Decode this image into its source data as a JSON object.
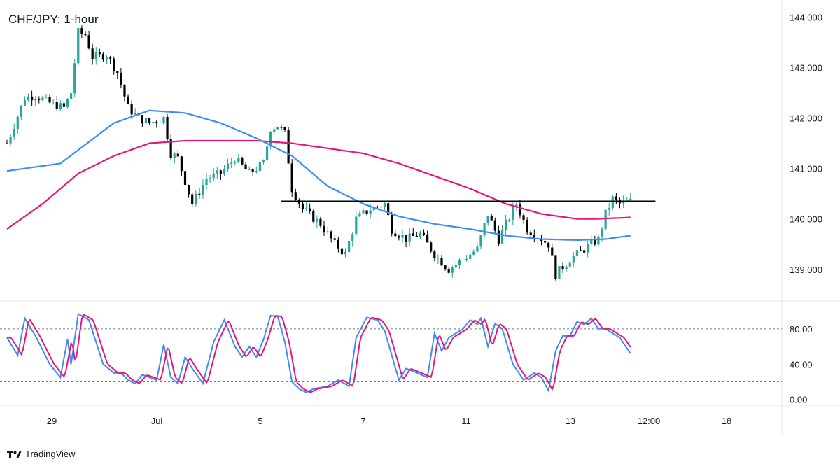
{
  "chart_data": {
    "type": "candlestick",
    "title": "CHF/JPY: 1-hour",
    "x_ticks": [
      "29",
      "Jul",
      "5",
      "7",
      "11",
      "13",
      "12:00",
      "18"
    ],
    "price_axis": {
      "ticks": [
        "144.000",
        "143.000",
        "142.000",
        "141.000",
        "140.000",
        "139.000"
      ],
      "ylim": [
        138.4,
        144.2
      ]
    },
    "price_path": [
      [
        0,
        141.5
      ],
      [
        5,
        142.4
      ],
      [
        8,
        142.45
      ],
      [
        12,
        142.3
      ],
      [
        16,
        142.2
      ],
      [
        18,
        142.5
      ],
      [
        20,
        143.7
      ],
      [
        22,
        143.65
      ],
      [
        24,
        143.2
      ],
      [
        28,
        143.25
      ],
      [
        31,
        142.9
      ],
      [
        34,
        142.2
      ],
      [
        37,
        142.0
      ],
      [
        40,
        141.9
      ],
      [
        44,
        142.0
      ],
      [
        46,
        141.3
      ],
      [
        48,
        141.2
      ],
      [
        52,
        140.3
      ],
      [
        56,
        140.8
      ],
      [
        60,
        140.9
      ],
      [
        64,
        141.2
      ],
      [
        68,
        140.9
      ],
      [
        72,
        141.1
      ],
      [
        74,
        141.8
      ],
      [
        76,
        141.85
      ],
      [
        78,
        141.7
      ],
      [
        80,
        140.6
      ],
      [
        83,
        140.2
      ],
      [
        88,
        139.9
      ],
      [
        92,
        139.5
      ],
      [
        95,
        139.3
      ],
      [
        98,
        140.0
      ],
      [
        102,
        140.2
      ],
      [
        106,
        140.3
      ],
      [
        108,
        139.8
      ],
      [
        112,
        139.6
      ],
      [
        116,
        139.7
      ],
      [
        120,
        139.3
      ],
      [
        124,
        139.0
      ],
      [
        128,
        139.2
      ],
      [
        132,
        139.4
      ],
      [
        135,
        140.1
      ],
      [
        138,
        139.6
      ],
      [
        140,
        139.9
      ],
      [
        143,
        140.3
      ],
      [
        146,
        139.8
      ],
      [
        148,
        139.7
      ],
      [
        152,
        139.5
      ],
      [
        154,
        138.9
      ],
      [
        158,
        139.2
      ],
      [
        162,
        139.4
      ],
      [
        166,
        139.6
      ],
      [
        168,
        140.1
      ],
      [
        170,
        140.4
      ],
      [
        172,
        140.3
      ],
      [
        175,
        140.35
      ]
    ],
    "candle_range": [
      0,
      175
    ],
    "ma_blue": [
      [
        0,
        140.95
      ],
      [
        15,
        141.1
      ],
      [
        30,
        141.9
      ],
      [
        40,
        142.15
      ],
      [
        50,
        142.1
      ],
      [
        60,
        141.9
      ],
      [
        70,
        141.6
      ],
      [
        80,
        141.25
      ],
      [
        90,
        140.65
      ],
      [
        100,
        140.3
      ],
      [
        110,
        140.05
      ],
      [
        120,
        139.9
      ],
      [
        130,
        139.8
      ],
      [
        140,
        139.67
      ],
      [
        150,
        139.6
      ],
      [
        160,
        139.58
      ],
      [
        168,
        139.6
      ],
      [
        175,
        139.67
      ]
    ],
    "ma_pink": [
      [
        0,
        139.8
      ],
      [
        10,
        140.3
      ],
      [
        20,
        140.9
      ],
      [
        30,
        141.25
      ],
      [
        40,
        141.5
      ],
      [
        50,
        141.55
      ],
      [
        60,
        141.55
      ],
      [
        70,
        141.55
      ],
      [
        80,
        141.5
      ],
      [
        90,
        141.4
      ],
      [
        100,
        141.3
      ],
      [
        110,
        141.1
      ],
      [
        120,
        140.85
      ],
      [
        130,
        140.6
      ],
      [
        140,
        140.3
      ],
      [
        150,
        140.1
      ],
      [
        160,
        140.0
      ],
      [
        165,
        140.0
      ],
      [
        175,
        140.03
      ]
    ],
    "horizontal_line": {
      "value": 140.35,
      "from": 77,
      "to": 182
    },
    "stoch_axis": {
      "ticks": [
        "80.00",
        "40.00",
        "0.00"
      ],
      "ylim": [
        -5,
        110
      ],
      "levels": [
        80,
        20
      ]
    },
    "stoch_path": [
      [
        0,
        70
      ],
      [
        3,
        50
      ],
      [
        5,
        92
      ],
      [
        8,
        72
      ],
      [
        12,
        40
      ],
      [
        15,
        25
      ],
      [
        17,
        68
      ],
      [
        18,
        40
      ],
      [
        20,
        97
      ],
      [
        23,
        90
      ],
      [
        27,
        40
      ],
      [
        30,
        30
      ],
      [
        32,
        30
      ],
      [
        34,
        22
      ],
      [
        36,
        18
      ],
      [
        38,
        28
      ],
      [
        42,
        22
      ],
      [
        44,
        62
      ],
      [
        46,
        25
      ],
      [
        48,
        18
      ],
      [
        50,
        48
      ],
      [
        52,
        35
      ],
      [
        55,
        18
      ],
      [
        58,
        65
      ],
      [
        61,
        90
      ],
      [
        64,
        60
      ],
      [
        66,
        48
      ],
      [
        68,
        60
      ],
      [
        70,
        48
      ],
      [
        72,
        68
      ],
      [
        74,
        95
      ],
      [
        76,
        94
      ],
      [
        78,
        65
      ],
      [
        80,
        20
      ],
      [
        82,
        12
      ],
      [
        84,
        8
      ],
      [
        86,
        12
      ],
      [
        90,
        15
      ],
      [
        93,
        22
      ],
      [
        96,
        15
      ],
      [
        98,
        70
      ],
      [
        101,
        93
      ],
      [
        104,
        90
      ],
      [
        106,
        78
      ],
      [
        108,
        50
      ],
      [
        110,
        22
      ],
      [
        112,
        35
      ],
      [
        114,
        32
      ],
      [
        118,
        25
      ],
      [
        120,
        75
      ],
      [
        122,
        55
      ],
      [
        124,
        70
      ],
      [
        128,
        80
      ],
      [
        130,
        90
      ],
      [
        132,
        85
      ],
      [
        133,
        92
      ],
      [
        135,
        60
      ],
      [
        137,
        86
      ],
      [
        139,
        80
      ],
      [
        142,
        40
      ],
      [
        145,
        22
      ],
      [
        148,
        30
      ],
      [
        150,
        25
      ],
      [
        152,
        10
      ],
      [
        154,
        55
      ],
      [
        156,
        72
      ],
      [
        158,
        72
      ],
      [
        160,
        88
      ],
      [
        162,
        85
      ],
      [
        164,
        92
      ],
      [
        166,
        80
      ],
      [
        168,
        80
      ],
      [
        172,
        70
      ],
      [
        175,
        52
      ]
    ]
  },
  "brand": {
    "name": "TradingView"
  },
  "colors": {
    "up": "#26a69a",
    "down": "#000000",
    "ma_blue": "#3d8df5",
    "ma_pink": "#e6167a",
    "stoch_k": "#3d8df5",
    "stoch_d": "#e6167a",
    "grid": "#b2b5be",
    "axis_text": "#131722"
  }
}
